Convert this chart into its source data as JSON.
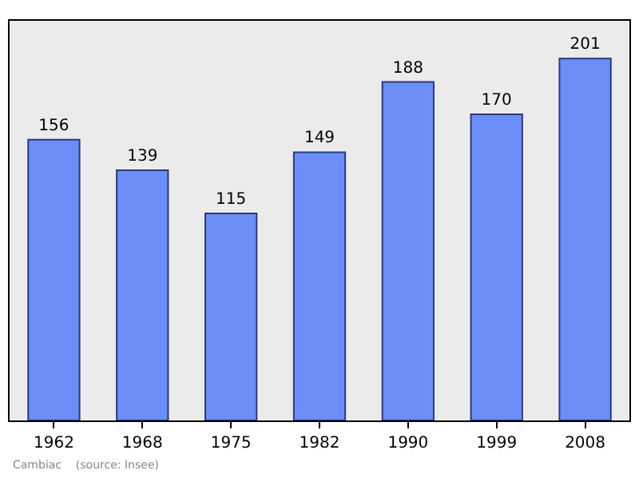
{
  "chart_data": {
    "type": "bar",
    "categories": [
      "1962",
      "1968",
      "1975",
      "1982",
      "1990",
      "1999",
      "2008"
    ],
    "values": [
      156,
      139,
      115,
      149,
      188,
      170,
      201
    ],
    "color": "#6b8ef7",
    "data_labels": true,
    "ylim": [
      0,
      222
    ],
    "tick_labels": "x",
    "grid": false,
    "annotations": [
      "Cambiac    (source: Insee)"
    ]
  }
}
